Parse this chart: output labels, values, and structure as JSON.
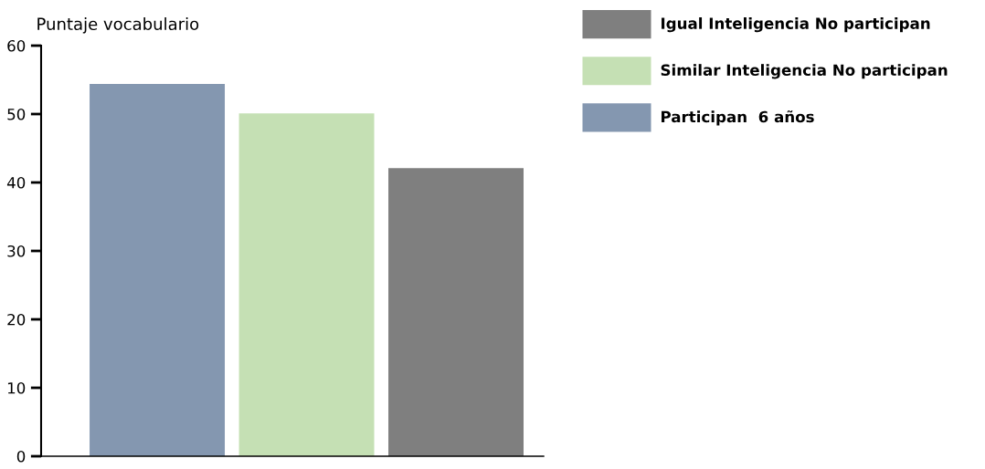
{
  "chart_data": {
    "type": "bar",
    "ylabel": "Puntaje vocabulario",
    "categories": [
      null,
      null,
      null
    ],
    "series": [
      {
        "name": "Igual Inteligencia No participan",
        "color": "#7f7f7f",
        "values": [
          null,
          null,
          42.1
        ]
      },
      {
        "name": "Similar Inteligencia No participan",
        "color": "#c5e0b4",
        "values": [
          null,
          50.1,
          null
        ]
      },
      {
        "name": "Participan  6 años",
        "color": "#8497b0",
        "values": [
          54.4,
          null,
          null
        ]
      }
    ],
    "ylim": [
      0,
      60
    ],
    "yticks": [
      0,
      10,
      20,
      30,
      40,
      50,
      60
    ],
    "grid": false,
    "legend": "top right"
  }
}
